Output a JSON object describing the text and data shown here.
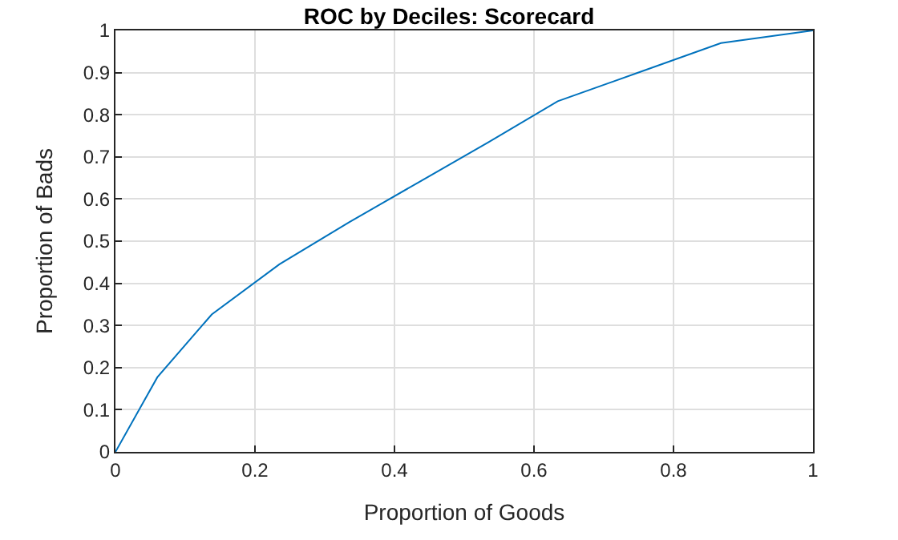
{
  "chart_data": {
    "type": "line",
    "title": "ROC by Deciles: Scorecard",
    "xlabel": "Proportion of Goods",
    "ylabel": "Proportion of Bads",
    "series": [
      {
        "color": "#0072bd",
        "x": [
          0,
          0.06,
          0.138,
          0.235,
          0.335,
          0.435,
          0.535,
          0.634,
          0.753,
          0.868,
          1
        ],
        "values": [
          0,
          0.177,
          0.326,
          0.445,
          0.545,
          0.64,
          0.735,
          0.832,
          0.902,
          0.97,
          1
        ]
      }
    ],
    "xlim": [
      0,
      1
    ],
    "ylim": [
      0,
      1
    ],
    "xticks": [
      0,
      0.2,
      0.4,
      0.6,
      0.8,
      1
    ],
    "yticks": [
      0,
      0.1,
      0.2,
      0.3,
      0.4,
      0.5,
      0.6,
      0.7,
      0.8,
      0.9,
      1
    ],
    "grid": true,
    "legend": false
  }
}
